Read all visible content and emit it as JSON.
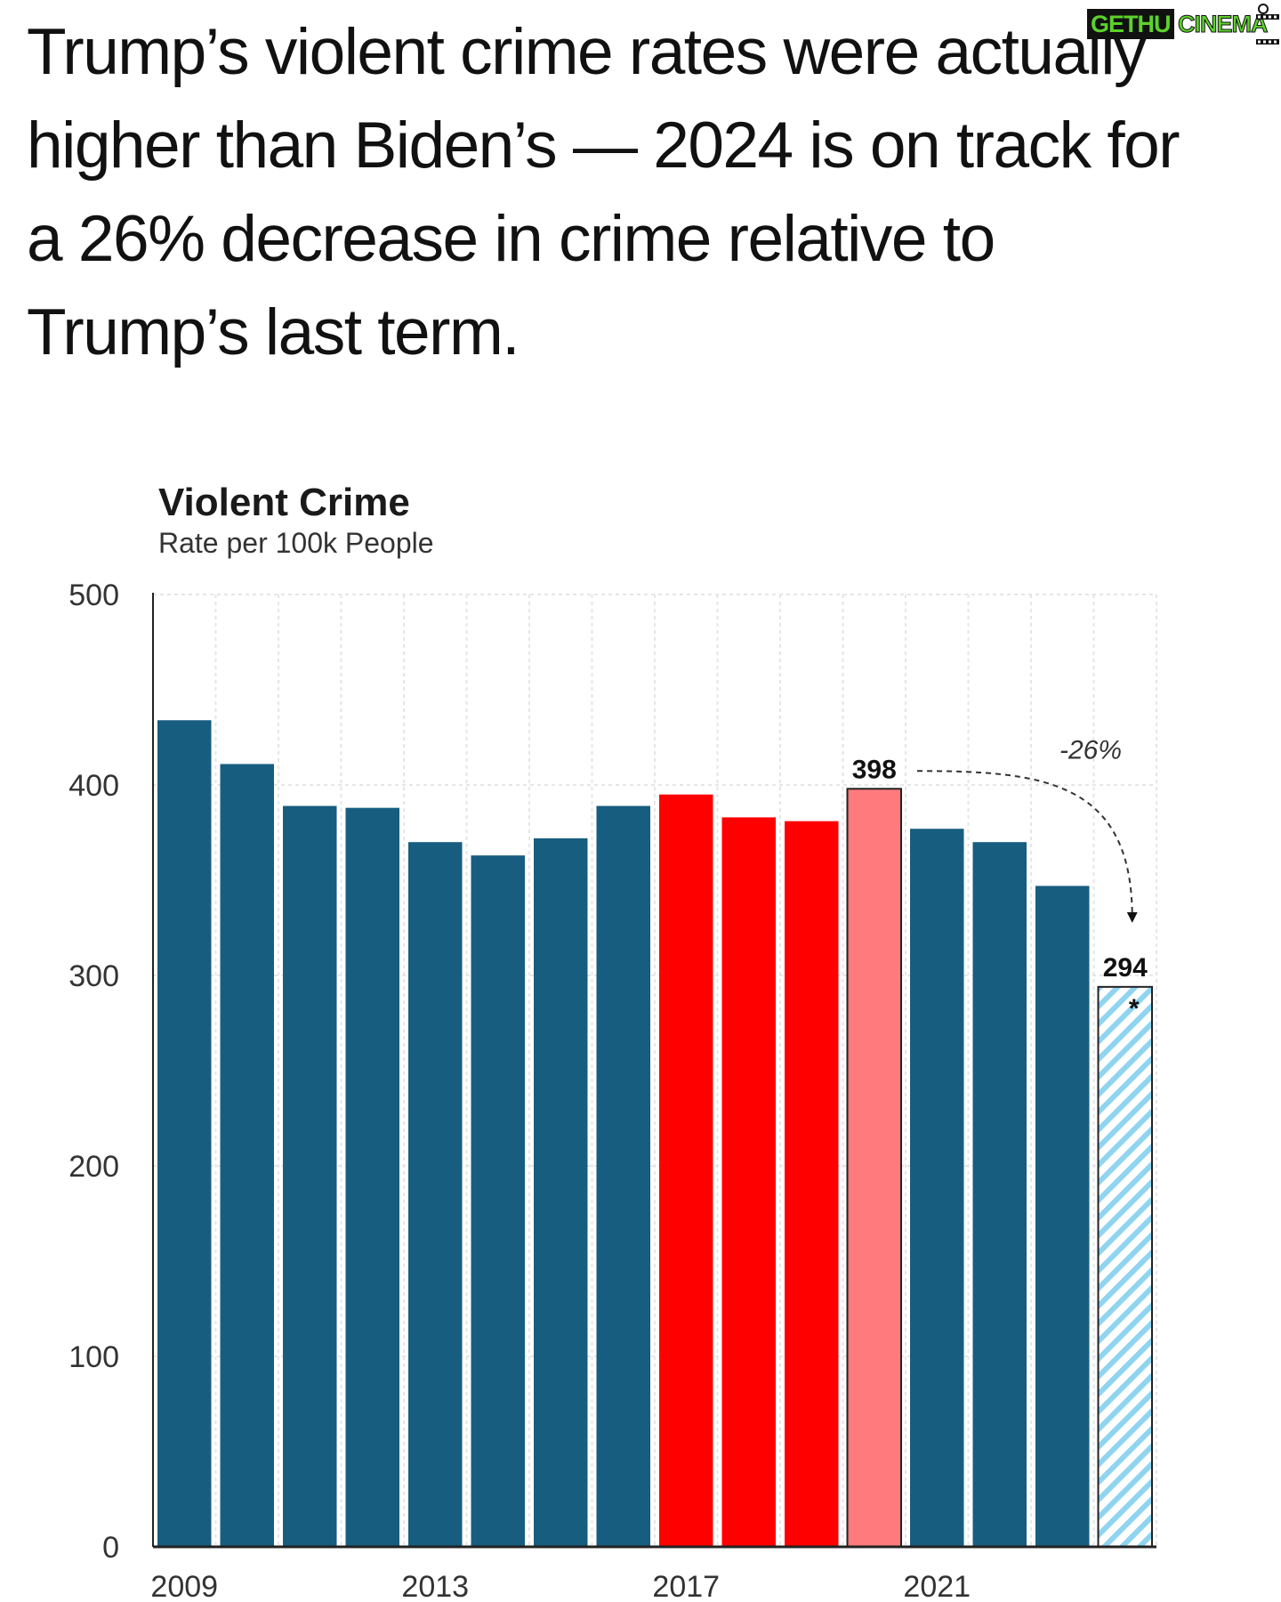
{
  "headline": "Trump’s violent crime rates were actually higher than Biden’s — 2024 is on track for a 26% decrease in crime relative to Trump’s last term.",
  "watermark": {
    "part1": "GETHU",
    "part2": "CINEMA"
  },
  "colors": {
    "obama": "#175d80",
    "trump": "#ff0000",
    "trump_2020": "#ff7a7d",
    "biden": "#175d80",
    "projection_stripe": "#8fd4f0",
    "grid": "#e6e6e6"
  },
  "chart_data": {
    "type": "bar",
    "title": "Violent Crime",
    "subtitle": "Rate per 100k People",
    "xlabel": "",
    "ylabel": "",
    "ylim": [
      0,
      500
    ],
    "yticks": [
      0,
      100,
      200,
      300,
      400,
      500
    ],
    "xtick_labels": [
      "2009",
      "2013",
      "2017",
      "2021"
    ],
    "categories": [
      "2009",
      "2010",
      "2011",
      "2012",
      "2013",
      "2014",
      "2015",
      "2016",
      "2017",
      "2018",
      "2019",
      "2020",
      "2021",
      "2022",
      "2023",
      "2024"
    ],
    "values": [
      434,
      411,
      389,
      388,
      370,
      363,
      372,
      389,
      395,
      383,
      381,
      398,
      377,
      370,
      347,
      294
    ],
    "bar_groups": [
      "obama",
      "obama",
      "obama",
      "obama",
      "obama",
      "obama",
      "obama",
      "obama",
      "trump",
      "trump",
      "trump",
      "trump_2020",
      "biden",
      "biden",
      "biden",
      "projection"
    ],
    "data_labels": [
      {
        "category": "2020",
        "text": "398"
      },
      {
        "category": "2024",
        "text": "294"
      }
    ],
    "annotations": [
      {
        "text": "-26%",
        "from": "2020",
        "to": "2024"
      },
      {
        "text": "*",
        "category": "2024"
      }
    ],
    "grid": true
  }
}
